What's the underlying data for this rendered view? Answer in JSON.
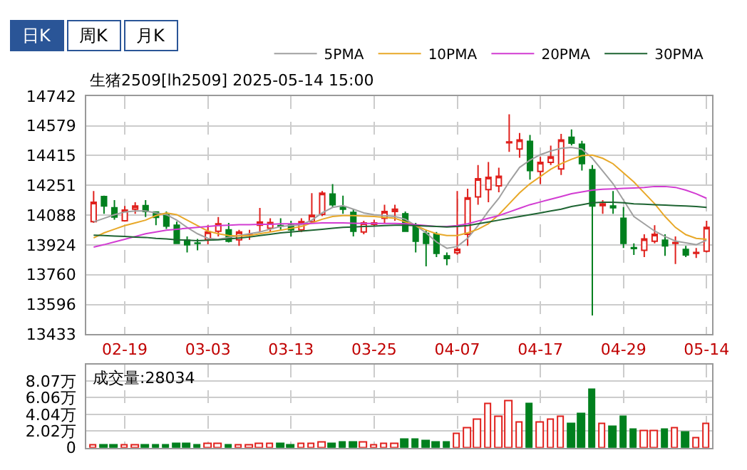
{
  "chart_data": [
    {
      "type": "candlestick",
      "title": "生猪2509[lh2509] 2025-05-14 15:00",
      "annotations": [
        "日K",
        "周K",
        "月K"
      ],
      "categories": [
        null,
        null,
        null,
        "02-19",
        null,
        null,
        null,
        null,
        null,
        null,
        null,
        "03-03",
        null,
        null,
        null,
        null,
        null,
        null,
        null,
        "03-13",
        null,
        null,
        null,
        null,
        null,
        null,
        null,
        "03-25",
        null,
        null,
        null,
        null,
        null,
        null,
        null,
        "04-07",
        null,
        null,
        null,
        null,
        null,
        null,
        null,
        "04-17",
        null,
        null,
        null,
        null,
        null,
        null,
        null,
        "04-29",
        null,
        null,
        null,
        null,
        null,
        null,
        null,
        "05-14"
      ],
      "ohlc": [
        [
          14052,
          14220,
          14045,
          14158
        ],
        [
          14190,
          14195,
          14095,
          14138
        ],
        [
          14128,
          14170,
          14062,
          14077
        ],
        [
          14057,
          14138,
          14052,
          14115
        ],
        [
          14120,
          14158,
          14095,
          14138
        ],
        [
          14140,
          14170,
          14077,
          14107
        ],
        [
          14105,
          14107,
          14032,
          14075
        ],
        [
          14090,
          14107,
          14012,
          14027
        ],
        [
          14032,
          14052,
          13932,
          13932
        ],
        [
          13950,
          13970,
          13882,
          13924
        ],
        [
          13934,
          13957,
          13894,
          13932
        ],
        [
          13952,
          14032,
          13927,
          13995
        ],
        [
          13999,
          14077,
          13970,
          14040
        ],
        [
          14007,
          14045,
          13937,
          13944
        ],
        [
          13952,
          14007,
          13919,
          13995
        ],
        [
          13977,
          14007,
          13952,
          13982
        ],
        [
          14032,
          14127,
          13995,
          14050
        ],
        [
          14015,
          14070,
          13995,
          14047
        ],
        [
          14030,
          14070,
          14007,
          14027
        ],
        [
          14032,
          14057,
          13970,
          14007
        ],
        [
          14007,
          14070,
          13995,
          14052
        ],
        [
          14052,
          14208,
          14045,
          14087
        ],
        [
          14092,
          14220,
          14082,
          14208
        ],
        [
          14203,
          14258,
          14132,
          14145
        ],
        [
          14130,
          14195,
          14095,
          14120
        ],
        [
          14103,
          14120,
          13970,
          13999
        ],
        [
          13995,
          14057,
          13982,
          14045
        ],
        [
          14037,
          14062,
          14027,
          14045
        ],
        [
          14070,
          14145,
          14045,
          14107
        ],
        [
          14107,
          14145,
          14057,
          14120
        ],
        [
          14095,
          14107,
          13995,
          13999
        ],
        [
          14027,
          14045,
          13882,
          13944
        ],
        [
          13987,
          14007,
          13806,
          13932
        ],
        [
          13982,
          13995,
          13857,
          13877
        ],
        [
          13864,
          13882,
          13812,
          13849
        ],
        [
          13880,
          14220,
          13870,
          13900
        ],
        [
          13982,
          14233,
          13919,
          14183
        ],
        [
          14188,
          14363,
          14145,
          14288
        ],
        [
          14228,
          14380,
          14158,
          14295
        ],
        [
          14248,
          14348,
          14213,
          14301
        ],
        [
          14485,
          14642,
          14435,
          14490
        ],
        [
          14451,
          14539,
          14403,
          14501
        ],
        [
          14493,
          14528,
          14283,
          14333
        ],
        [
          14328,
          14408,
          14258,
          14378
        ],
        [
          14378,
          14470,
          14363,
          14408
        ],
        [
          14341,
          14534,
          14308,
          14501
        ],
        [
          14516,
          14559,
          14471,
          14483
        ],
        [
          14478,
          14496,
          14333,
          14371
        ],
        [
          14338,
          14363,
          13536,
          14138
        ],
        [
          14140,
          14170,
          14095,
          14150
        ],
        [
          14138,
          14220,
          14095,
          14128
        ],
        [
          14070,
          14132,
          13907,
          13932
        ],
        [
          13909,
          13932,
          13869,
          13904
        ],
        [
          13894,
          13982,
          13857,
          13957
        ],
        [
          13944,
          14032,
          13932,
          13982
        ],
        [
          13950,
          13982,
          13864,
          13919
        ],
        [
          13932,
          13970,
          13819,
          13937
        ],
        [
          13899,
          13919,
          13857,
          13869
        ],
        [
          13877,
          13907,
          13852,
          13882
        ],
        [
          13889,
          14057,
          13882,
          14020
        ]
      ],
      "colors": [
        "#e0201c",
        "#00801e",
        "#00801e",
        "#e0201c",
        "#e0201c",
        "#00801e",
        "#00801e",
        "#00801e",
        "#00801e",
        "#00801e",
        "#00801e",
        "#e0201c",
        "#e0201c",
        "#00801e",
        "#e0201c",
        "#e0201c",
        "#e0201c",
        "#e0201c",
        "#00801e",
        "#00801e",
        "#e0201c",
        "#e0201c",
        "#e0201c",
        "#00801e",
        "#00801e",
        "#00801e",
        "#e0201c",
        "#e0201c",
        "#e0201c",
        "#e0201c",
        "#00801e",
        "#00801e",
        "#00801e",
        "#00801e",
        "#00801e",
        "#e0201c",
        "#e0201c",
        "#e0201c",
        "#e0201c",
        "#e0201c",
        "#e0201c",
        "#e0201c",
        "#00801e",
        "#e0201c",
        "#e0201c",
        "#e0201c",
        "#00801e",
        "#00801e",
        "#00801e",
        "#e0201c",
        "#00801e",
        "#00801e",
        "#00801e",
        "#e0201c",
        "#e0201c",
        "#00801e",
        "#e0201c",
        "#00801e",
        "#e0201c",
        "#e0201c"
      ],
      "series": [
        {
          "type": "line",
          "name": "5PMA",
          "color": "#a0a0a0",
          "values": [
            14050,
            14070,
            14090,
            14105,
            14110,
            14110,
            14100,
            14090,
            14060,
            14020,
            13985,
            13960,
            13955,
            13965,
            13975,
            13985,
            13995,
            14010,
            14025,
            14030,
            14035,
            14060,
            14100,
            14130,
            14140,
            14120,
            14100,
            14090,
            14085,
            14080,
            14065,
            14030,
            13990,
            13940,
            13905,
            13915,
            13960,
            14030,
            14110,
            14180,
            14270,
            14350,
            14390,
            14420,
            14440,
            14455,
            14460,
            14450,
            14400,
            14330,
            14260,
            14170,
            14080,
            14040,
            14000,
            13970,
            13945,
            13935,
            13925,
            13950
          ]
        },
        {
          "type": "line",
          "name": "10PMA",
          "color": "#e8a828",
          "values": [
            13962,
            13990,
            14010,
            14030,
            14045,
            14060,
            14085,
            14100,
            14090,
            14060,
            14030,
            14000,
            13985,
            13975,
            13972,
            13975,
            13985,
            13995,
            14005,
            14015,
            14025,
            14045,
            14065,
            14080,
            14085,
            14085,
            14082,
            14080,
            14075,
            14070,
            14050,
            14030,
            14005,
            13985,
            13975,
            13975,
            13990,
            14010,
            14040,
            14090,
            14150,
            14210,
            14260,
            14300,
            14340,
            14370,
            14395,
            14415,
            14418,
            14400,
            14370,
            14320,
            14270,
            14210,
            14150,
            14080,
            14020,
            13980,
            13960,
            13955
          ]
        },
        {
          "type": "line",
          "name": "20PMA",
          "color": "#d23cd2",
          "values": [
            13912,
            13925,
            13940,
            13955,
            13970,
            13985,
            13995,
            14005,
            14010,
            14015,
            14020,
            14025,
            14030,
            14032,
            14035,
            14035,
            14037,
            14037,
            14040,
            14040,
            14040,
            14042,
            14045,
            14045,
            14045,
            14043,
            14042,
            14042,
            14042,
            14042,
            14040,
            14035,
            14030,
            14025,
            14025,
            14030,
            14040,
            14055,
            14070,
            14085,
            14105,
            14125,
            14145,
            14160,
            14175,
            14190,
            14205,
            14215,
            14225,
            14230,
            14232,
            14235,
            14237,
            14240,
            14245,
            14245,
            14240,
            14225,
            14205,
            14180
          ]
        },
        {
          "type": "line",
          "name": "30PMA",
          "color": "#1e6432",
          "values": [
            13977,
            13975,
            13972,
            13970,
            13967,
            13965,
            13960,
            13957,
            13952,
            13950,
            13947,
            13950,
            13952,
            13957,
            13962,
            13967,
            13975,
            13982,
            13990,
            13995,
            14000,
            14005,
            14010,
            14015,
            14020,
            14022,
            14025,
            14027,
            14030,
            14032,
            14032,
            14030,
            14027,
            14025,
            14022,
            14025,
            14030,
            14040,
            14050,
            14060,
            14070,
            14080,
            14090,
            14100,
            14110,
            14120,
            14135,
            14145,
            14155,
            14158,
            14158,
            14155,
            14150,
            14148,
            14145,
            14143,
            14140,
            14138,
            14135,
            14130
          ]
        }
      ],
      "ylim": [
        13433,
        14742
      ],
      "yticks": [
        13433,
        13596,
        13760,
        13924,
        14088,
        14251,
        14415,
        14579,
        14742
      ],
      "grid": true,
      "legend": "top right",
      "marker": "none",
      "line_style": "solid"
    },
    {
      "type": "bar",
      "title": "成交量:28034",
      "categories": [
        null,
        null,
        null,
        null,
        null,
        null,
        null,
        null,
        null,
        null,
        null,
        null,
        null,
        null,
        null,
        null,
        null,
        null,
        null,
        null,
        null,
        null,
        null,
        null,
        null,
        null,
        null,
        null,
        null,
        null,
        null,
        null,
        null,
        null,
        null,
        null,
        null,
        null,
        null,
        null,
        null,
        null,
        null,
        null,
        null,
        null,
        null,
        null,
        null,
        null,
        null,
        null,
        null,
        null,
        null,
        null,
        null,
        null,
        null,
        null
      ],
      "values": [
        0.3,
        0.3,
        0.3,
        0.3,
        0.2,
        0.3,
        0.3,
        0.3,
        0.5,
        0.4,
        0.2,
        0.5,
        0.4,
        0.3,
        0.3,
        0.3,
        0.4,
        0.5,
        0.4,
        0.3,
        0.4,
        0.4,
        0.7,
        0.4,
        0.6,
        0.6,
        0.7,
        0.3,
        0.4,
        0.4,
        0.9,
        0.9,
        0.8,
        0.6,
        0.7,
        1.6,
        2.4,
        3.4,
        5.3,
        3.8,
        5.6,
        3.0,
        5.3,
        3.0,
        3.4,
        3.8,
        2.8,
        4.0,
        7.0,
        2.8,
        2.6,
        3.8,
        2.1,
        2.0,
        2.0,
        2.1,
        2.4,
        1.8,
        1.2,
        2.8
      ],
      "colors": [
        "#e0201c",
        "#00801e",
        "#00801e",
        "#e0201c",
        "#e0201c",
        "#00801e",
        "#00801e",
        "#00801e",
        "#00801e",
        "#00801e",
        "#00801e",
        "#e0201c",
        "#e0201c",
        "#00801e",
        "#e0201c",
        "#e0201c",
        "#e0201c",
        "#e0201c",
        "#00801e",
        "#00801e",
        "#e0201c",
        "#e0201c",
        "#e0201c",
        "#00801e",
        "#00801e",
        "#00801e",
        "#e0201c",
        "#e0201c",
        "#e0201c",
        "#e0201c",
        "#00801e",
        "#00801e",
        "#00801e",
        "#00801e",
        "#00801e",
        "#e0201c",
        "#e0201c",
        "#e0201c",
        "#e0201c",
        "#e0201c",
        "#e0201c",
        "#e0201c",
        "#00801e",
        "#e0201c",
        "#e0201c",
        "#e0201c",
        "#00801e",
        "#00801e",
        "#00801e",
        "#e0201c",
        "#00801e",
        "#00801e",
        "#00801e",
        "#e0201c",
        "#e0201c",
        "#00801e",
        "#e0201c",
        "#00801e",
        "#e0201c",
        "#e0201c"
      ],
      "ylim": [
        0,
        10.1
      ],
      "yticks": [
        0,
        {
          "value": 2.02,
          "label": "2.02万"
        },
        {
          "value": 4.04,
          "label": "4.04万"
        },
        {
          "value": 6.06,
          "label": "6.06万"
        },
        {
          "value": 8.07,
          "label": "8.07万"
        }
      ],
      "grid": true,
      "tick_labels": "y"
    }
  ]
}
